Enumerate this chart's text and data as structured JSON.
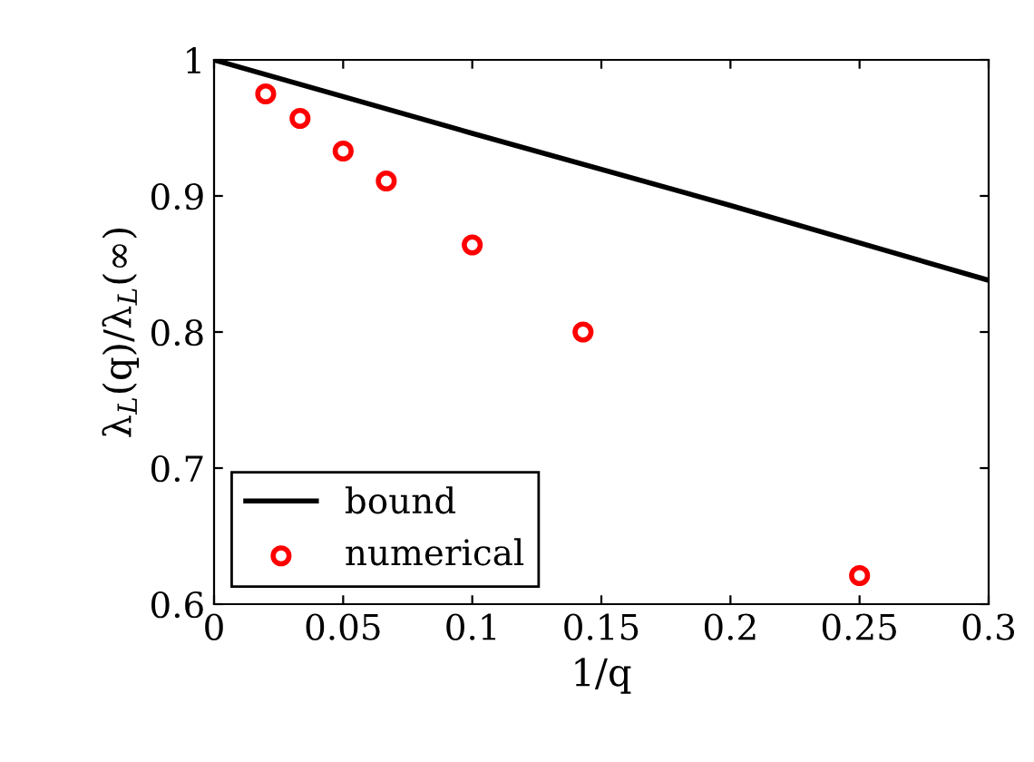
{
  "chart_data": {
    "type": "line",
    "xlabel": "1/q",
    "ylabel": "λ$_{L}$(q)/λ$_{L}$(∞)",
    "xlim": [
      0,
      0.3
    ],
    "ylim": [
      0.6,
      1
    ],
    "xticks": [
      0,
      0.05,
      0.1,
      0.15,
      0.2,
      0.25,
      0.3
    ],
    "yticks": [
      0.6,
      0.7,
      0.8,
      0.9,
      1
    ],
    "grid": false,
    "legend": "bottom left",
    "series": [
      {
        "name": "bound",
        "color": "#000000",
        "marker": "none",
        "line_style": "solid",
        "x": [
          0,
          0.1,
          0.2,
          0.3
        ],
        "values": [
          1,
          0.946,
          0.893,
          0.838
        ]
      },
      {
        "name": "numerical",
        "type": "scatter",
        "color": "#ff0000",
        "marker": "circle",
        "x": [
          0.02,
          0.0333,
          0.05,
          0.0667,
          0.1,
          0.1429,
          0.25
        ],
        "values": [
          0.975,
          0.957,
          0.933,
          0.911,
          0.864,
          0.8,
          0.621
        ]
      }
    ]
  }
}
